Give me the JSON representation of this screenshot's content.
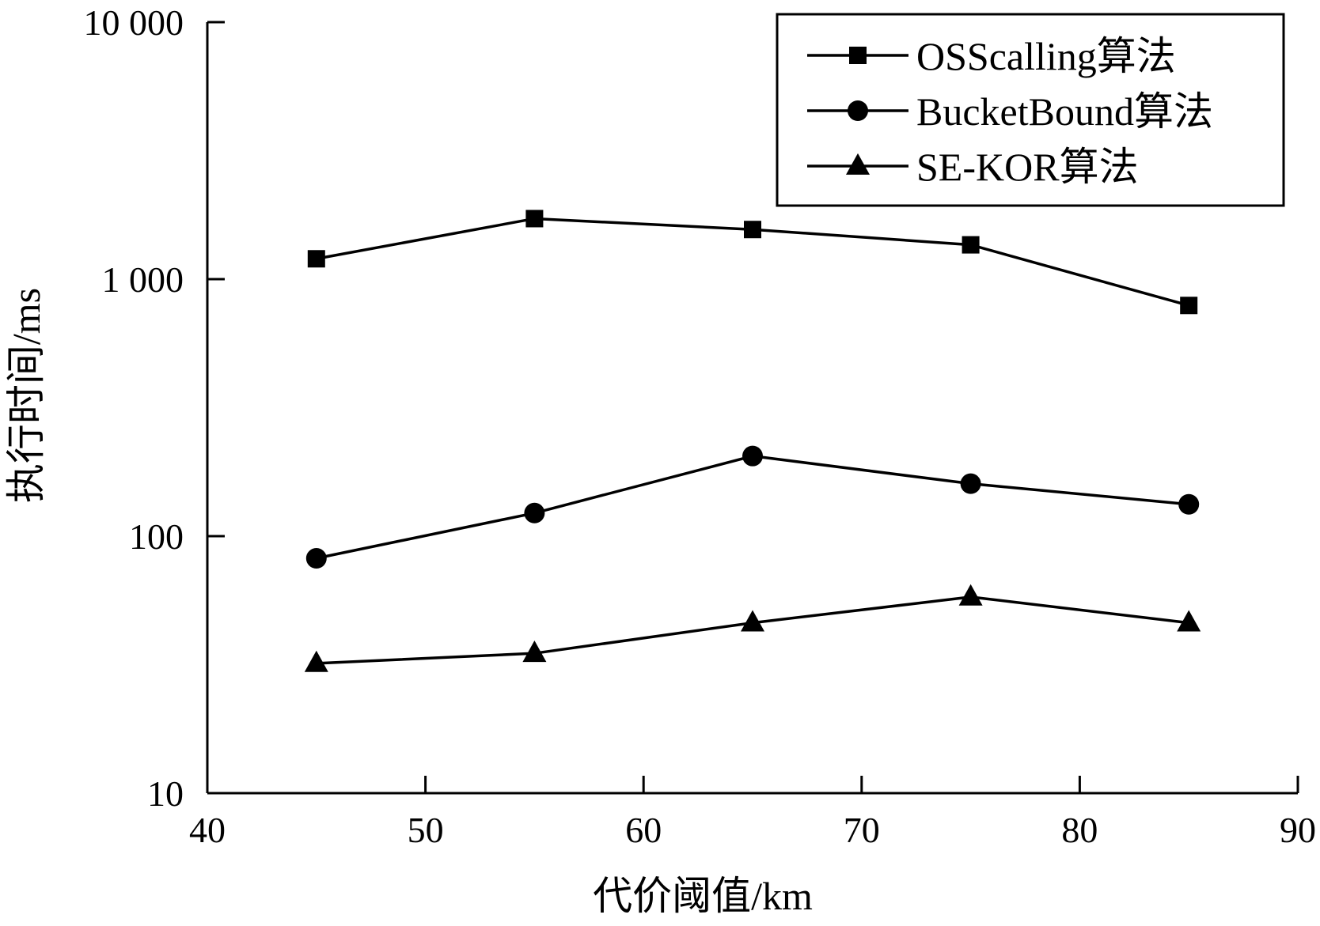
{
  "chart_data": {
    "type": "line",
    "xlabel": "代价阈值/km",
    "ylabel": "执行时间/ms",
    "xlim": [
      40,
      90
    ],
    "ylim": [
      10,
      10000
    ],
    "yscale": "log",
    "x_ticks": [
      40,
      50,
      60,
      70,
      80,
      90
    ],
    "x_tick_labels": [
      "40",
      "50",
      "60",
      "70",
      "80",
      "90"
    ],
    "y_ticks": [
      10,
      100,
      1000,
      10000
    ],
    "y_tick_labels": [
      "10",
      "100",
      "1 000",
      "10 000"
    ],
    "grid": false,
    "legend_position": "top-right",
    "x": [
      45,
      55,
      65,
      75,
      85
    ],
    "series": [
      {
        "name": "OSScalling算法",
        "marker": "square",
        "values": [
          1200,
          1720,
          1560,
          1360,
          790
        ]
      },
      {
        "name": "BucketBound算法",
        "marker": "circle",
        "values": [
          82,
          123,
          205,
          160,
          133
        ]
      },
      {
        "name": "SE-KOR算法",
        "marker": "triangle",
        "values": [
          32,
          35,
          46,
          58,
          46
        ]
      }
    ],
    "colors": {
      "line": "#000000",
      "background": "#ffffff"
    }
  }
}
